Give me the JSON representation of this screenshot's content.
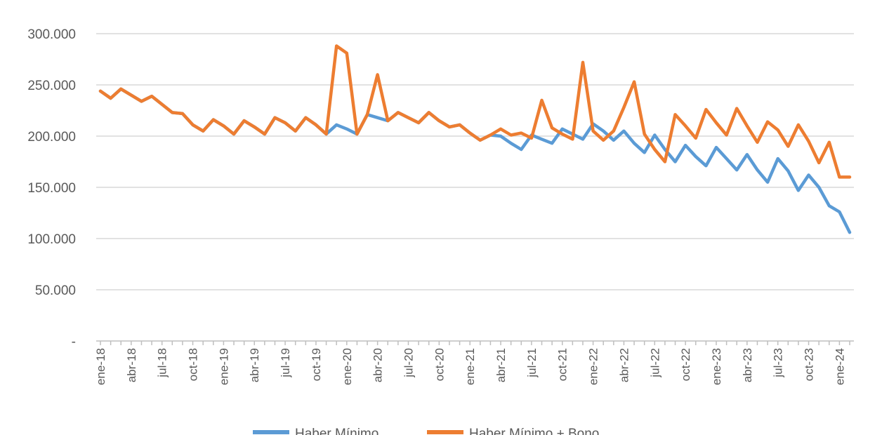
{
  "chart_data": {
    "type": "line",
    "title": "",
    "xlabel": "",
    "ylabel": "",
    "ylim": [
      0,
      300000
    ],
    "yticks": [
      0,
      50000,
      100000,
      150000,
      200000,
      250000,
      300000
    ],
    "ytick_labels": [
      "-",
      "50.000",
      "100.000",
      "150.000",
      "200.000",
      "250.000",
      "300.000"
    ],
    "x_tick_labels": [
      "ene-18",
      "abr-18",
      "jul-18",
      "oct-18",
      "ene-19",
      "abr-19",
      "jul-19",
      "oct-19",
      "ene-20",
      "abr-20",
      "jul-20",
      "oct-20",
      "ene-21",
      "abr-21",
      "jul-21",
      "oct-21",
      "ene-22",
      "abr-22",
      "jul-22",
      "oct-22",
      "ene-23",
      "abr-23",
      "jul-23",
      "oct-23",
      "ene-24"
    ],
    "grid": true,
    "legend_position": "bottom",
    "x": [
      "ene-18",
      "feb-18",
      "mar-18",
      "abr-18",
      "may-18",
      "jun-18",
      "jul-18",
      "ago-18",
      "sep-18",
      "oct-18",
      "nov-18",
      "dic-18",
      "ene-19",
      "feb-19",
      "mar-19",
      "abr-19",
      "may-19",
      "jun-19",
      "jul-19",
      "ago-19",
      "sep-19",
      "oct-19",
      "nov-19",
      "dic-19",
      "ene-20",
      "feb-20",
      "mar-20",
      "abr-20",
      "may-20",
      "jun-20",
      "jul-20",
      "ago-20",
      "sep-20",
      "oct-20",
      "nov-20",
      "dic-20",
      "ene-21",
      "feb-21",
      "mar-21",
      "abr-21",
      "may-21",
      "jun-21",
      "jul-21",
      "ago-21",
      "sep-21",
      "oct-21",
      "nov-21",
      "dic-21",
      "ene-22",
      "feb-22",
      "mar-22",
      "abr-22",
      "may-22",
      "jun-22",
      "jul-22",
      "ago-22",
      "sep-22",
      "oct-22",
      "nov-22",
      "dic-22",
      "ene-23",
      "feb-23",
      "mar-23",
      "abr-23",
      "may-23",
      "jun-23",
      "jul-23",
      "ago-23",
      "sep-23",
      "oct-23",
      "nov-23",
      "dic-23",
      "ene-24",
      "feb-24"
    ],
    "series": [
      {
        "name": "Haber Mínimo",
        "color": "#5b9bd5",
        "values": [
          244000,
          237000,
          246000,
          240000,
          234000,
          239000,
          231000,
          223000,
          222000,
          211000,
          205000,
          216000,
          210000,
          202000,
          215000,
          209000,
          202000,
          218000,
          213000,
          205000,
          218000,
          211000,
          202000,
          211000,
          207000,
          202000,
          221000,
          218000,
          215000,
          223000,
          218000,
          213000,
          223000,
          215000,
          209000,
          211000,
          203000,
          196000,
          201000,
          200000,
          193000,
          187000,
          201000,
          197000,
          193000,
          207000,
          202000,
          197000,
          212000,
          205000,
          196000,
          205000,
          193000,
          184000,
          201000,
          187000,
          175000,
          191000,
          180000,
          171000,
          189000,
          178000,
          167000,
          182000,
          167000,
          155000,
          178000,
          166000,
          147000,
          162000,
          150000,
          132000,
          126000,
          106000
        ]
      },
      {
        "name": "Haber Mínimo + Bono",
        "color": "#ed7d31",
        "values": [
          244000,
          237000,
          246000,
          240000,
          234000,
          239000,
          231000,
          223000,
          222000,
          211000,
          205000,
          216000,
          210000,
          202000,
          215000,
          209000,
          202000,
          218000,
          213000,
          205000,
          218000,
          211000,
          202000,
          288000,
          281000,
          202000,
          221000,
          260000,
          215000,
          223000,
          218000,
          213000,
          223000,
          215000,
          209000,
          211000,
          203000,
          196000,
          201000,
          207000,
          201000,
          203000,
          198000,
          235000,
          208000,
          202000,
          197000,
          272000,
          205000,
          196000,
          205000,
          228000,
          253000,
          202000,
          187000,
          175000,
          221000,
          210000,
          198000,
          226000,
          213000,
          201000,
          227000,
          210000,
          194000,
          214000,
          206000,
          190000,
          211000,
          195000,
          174000,
          194000,
          160000,
          160000
        ]
      }
    ]
  }
}
